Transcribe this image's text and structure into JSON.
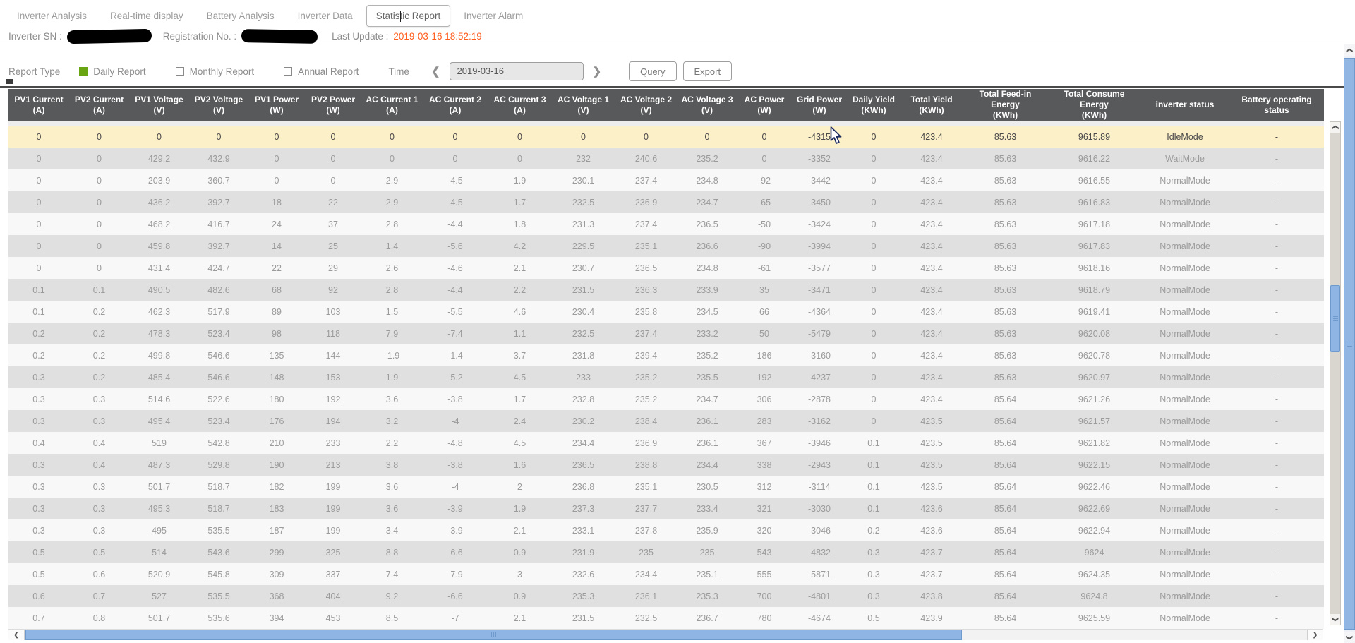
{
  "tabs": {
    "items": [
      {
        "label": "Inverter Analysis",
        "active": false
      },
      {
        "label": "Real-time display",
        "active": false
      },
      {
        "label": "Battery Analysis",
        "active": false
      },
      {
        "label": "Inverter Data",
        "active": false
      },
      {
        "label": "Statistic Report",
        "active": true
      },
      {
        "label": "Inverter Alarm",
        "active": false
      }
    ]
  },
  "info": {
    "inverter_sn_label": "Inverter SN :",
    "registration_label": "Registration No. :",
    "last_update_label": "Last Update :",
    "last_update_value": "2019-03-16 18:52:19",
    "last_update_color": "#ff5c1c"
  },
  "controls": {
    "report_type_label": "Report Type",
    "options": [
      {
        "label": "Daily Report",
        "checked": true
      },
      {
        "label": "Monthly Report",
        "checked": false
      },
      {
        "label": "Annual Report",
        "checked": false
      }
    ],
    "checkbox_green": "#69a412",
    "time_label": "Time",
    "date_value": "2019-03-16",
    "query_label": "Query",
    "export_label": "Export"
  },
  "icons": {
    "chevron_left": "❮",
    "chevron_right": "❯"
  },
  "table": {
    "header_bg": "#58595b",
    "highlight_color": "#fcf0c8",
    "row_light": "#f8f8f8",
    "row_dark": "#e0e0e0",
    "scrollbar_blue": "#8fb5e4",
    "highlight_row_index": 0,
    "columns": [
      {
        "name": "PV1 Current",
        "unit": "(A)"
      },
      {
        "name": "PV2 Current",
        "unit": "(A)"
      },
      {
        "name": "PV1 Voltage",
        "unit": "(V)"
      },
      {
        "name": "PV2 Voltage",
        "unit": "(V)"
      },
      {
        "name": "PV1 Power",
        "unit": "(W)"
      },
      {
        "name": "PV2 Power",
        "unit": "(W)"
      },
      {
        "name": "AC Current 1",
        "unit": "(A)"
      },
      {
        "name": "AC Current 2",
        "unit": "(A)"
      },
      {
        "name": "AC Current 3",
        "unit": "(A)"
      },
      {
        "name": "AC Voltage 1",
        "unit": "(V)"
      },
      {
        "name": "AC Voltage 2",
        "unit": "(V)"
      },
      {
        "name": "AC Voltage 3",
        "unit": "(V)"
      },
      {
        "name": "AC Power",
        "unit": "(W)"
      },
      {
        "name": "Grid Power",
        "unit": "(W)"
      },
      {
        "name": "Daily Yield",
        "unit": "(KWh)"
      },
      {
        "name": "Total Yield",
        "unit": "(KWh)"
      },
      {
        "name": "Total Feed-in Energy",
        "unit": "(KWh)"
      },
      {
        "name": "Total Consume Energy",
        "unit": "(KWh)"
      },
      {
        "name": "inverter status",
        "unit": ""
      },
      {
        "name": "Battery operating status",
        "unit": ""
      }
    ],
    "rows": [
      [
        "0",
        "0",
        "0",
        "0",
        "0",
        "0",
        "0",
        "0",
        "0",
        "0",
        "0",
        "0",
        "0",
        "-4315",
        "0",
        "423.4",
        "85.63",
        "9615.89",
        "IdleMode",
        "-"
      ],
      [
        "0",
        "0",
        "429.2",
        "432.9",
        "0",
        "0",
        "0",
        "0",
        "0",
        "232",
        "240.6",
        "235.2",
        "0",
        "-3352",
        "0",
        "423.4",
        "85.63",
        "9616.22",
        "WaitMode",
        "-"
      ],
      [
        "0",
        "0",
        "203.9",
        "360.7",
        "0",
        "0",
        "2.9",
        "-4.5",
        "1.9",
        "230.1",
        "237.4",
        "234.8",
        "-92",
        "-3442",
        "0",
        "423.4",
        "85.63",
        "9616.55",
        "NormalMode",
        "-"
      ],
      [
        "0",
        "0",
        "436.2",
        "392.7",
        "18",
        "22",
        "2.9",
        "-4.5",
        "1.7",
        "232.5",
        "236.9",
        "234.7",
        "-65",
        "-3450",
        "0",
        "423.4",
        "85.63",
        "9616.83",
        "NormalMode",
        "-"
      ],
      [
        "0",
        "0",
        "468.2",
        "416.7",
        "24",
        "37",
        "2.8",
        "-4.4",
        "1.8",
        "231.3",
        "237.4",
        "236.5",
        "-50",
        "-3424",
        "0",
        "423.4",
        "85.63",
        "9617.18",
        "NormalMode",
        "-"
      ],
      [
        "0",
        "0",
        "459.8",
        "392.7",
        "14",
        "25",
        "1.4",
        "-5.6",
        "4.2",
        "229.5",
        "235.1",
        "236.6",
        "-90",
        "-3994",
        "0",
        "423.4",
        "85.63",
        "9617.83",
        "NormalMode",
        "-"
      ],
      [
        "0",
        "0",
        "431.4",
        "424.7",
        "22",
        "29",
        "2.6",
        "-4.6",
        "2.1",
        "230.7",
        "236.5",
        "234.8",
        "-61",
        "-3577",
        "0",
        "423.4",
        "85.63",
        "9618.16",
        "NormalMode",
        "-"
      ],
      [
        "0.1",
        "0.1",
        "490.5",
        "482.6",
        "68",
        "92",
        "2.8",
        "-4.4",
        "2.2",
        "231.5",
        "236.3",
        "233.9",
        "35",
        "-3471",
        "0",
        "423.4",
        "85.63",
        "9618.79",
        "NormalMode",
        "-"
      ],
      [
        "0.1",
        "0.2",
        "462.3",
        "517.9",
        "89",
        "103",
        "1.5",
        "-5.5",
        "4.6",
        "230.4",
        "235.8",
        "234.5",
        "66",
        "-4364",
        "0",
        "423.4",
        "85.63",
        "9619.41",
        "NormalMode",
        "-"
      ],
      [
        "0.2",
        "0.2",
        "478.3",
        "523.4",
        "98",
        "118",
        "7.9",
        "-7.4",
        "1.1",
        "232.5",
        "237.4",
        "233.2",
        "50",
        "-5479",
        "0",
        "423.4",
        "85.63",
        "9620.08",
        "NormalMode",
        "-"
      ],
      [
        "0.2",
        "0.2",
        "499.8",
        "546.6",
        "135",
        "144",
        "-1.9",
        "-1.4",
        "3.7",
        "231.8",
        "239.4",
        "235.2",
        "186",
        "-3160",
        "0",
        "423.4",
        "85.63",
        "9620.78",
        "NormalMode",
        "-"
      ],
      [
        "0.3",
        "0.2",
        "485.4",
        "546.6",
        "148",
        "153",
        "1.9",
        "-5.2",
        "4.5",
        "233",
        "235.2",
        "235.5",
        "192",
        "-4237",
        "0",
        "423.4",
        "85.63",
        "9620.97",
        "NormalMode",
        "-"
      ],
      [
        "0.3",
        "0.3",
        "514.6",
        "522.6",
        "180",
        "192",
        "3.6",
        "-3.8",
        "1.7",
        "232.8",
        "235.2",
        "234.7",
        "306",
        "-2878",
        "0",
        "423.4",
        "85.64",
        "9621.26",
        "NormalMode",
        "-"
      ],
      [
        "0.3",
        "0.3",
        "495.4",
        "523.4",
        "176",
        "194",
        "3.2",
        "-4",
        "2.4",
        "230.2",
        "238.4",
        "236.1",
        "283",
        "-3162",
        "0",
        "423.5",
        "85.64",
        "9621.57",
        "NormalMode",
        "-"
      ],
      [
        "0.4",
        "0.4",
        "519",
        "542.8",
        "210",
        "233",
        "2.2",
        "-4.8",
        "4.5",
        "234.4",
        "236.9",
        "236.1",
        "367",
        "-3946",
        "0.1",
        "423.5",
        "85.64",
        "9621.82",
        "NormalMode",
        "-"
      ],
      [
        "0.3",
        "0.4",
        "487.3",
        "529.8",
        "190",
        "213",
        "3.8",
        "-3.8",
        "1.6",
        "236.5",
        "238.8",
        "234.4",
        "338",
        "-2943",
        "0.1",
        "423.5",
        "85.64",
        "9622.15",
        "NormalMode",
        "-"
      ],
      [
        "0.3",
        "0.3",
        "501.7",
        "518.7",
        "182",
        "199",
        "3.6",
        "-4",
        "2",
        "236.8",
        "235.1",
        "230.5",
        "312",
        "-3114",
        "0.1",
        "423.5",
        "85.64",
        "9622.46",
        "NormalMode",
        "-"
      ],
      [
        "0.3",
        "0.3",
        "495.3",
        "518.7",
        "183",
        "199",
        "3.6",
        "-3.9",
        "1.9",
        "237.3",
        "237.7",
        "233.4",
        "321",
        "-3030",
        "0.1",
        "423.6",
        "85.64",
        "9622.69",
        "NormalMode",
        "-"
      ],
      [
        "0.3",
        "0.3",
        "495",
        "535.5",
        "187",
        "199",
        "3.4",
        "-3.9",
        "2.1",
        "233.1",
        "237.8",
        "235.9",
        "320",
        "-3046",
        "0.2",
        "423.6",
        "85.64",
        "9622.94",
        "NormalMode",
        "-"
      ],
      [
        "0.5",
        "0.5",
        "514",
        "543.6",
        "299",
        "325",
        "8.8",
        "-6.6",
        "0.9",
        "231.9",
        "235",
        "235",
        "543",
        "-4832",
        "0.3",
        "423.7",
        "85.64",
        "9624",
        "NormalMode",
        "-"
      ],
      [
        "0.5",
        "0.6",
        "520.9",
        "545.8",
        "309",
        "337",
        "7.4",
        "-7.9",
        "3",
        "232.6",
        "234.4",
        "235.1",
        "555",
        "-5871",
        "0.3",
        "423.7",
        "85.64",
        "9624.35",
        "NormalMode",
        "-"
      ],
      [
        "0.6",
        "0.7",
        "527",
        "535.5",
        "368",
        "404",
        "9.2",
        "-6.6",
        "0.9",
        "235.3",
        "236.1",
        "235.3",
        "700",
        "-4801",
        "0.3",
        "423.8",
        "85.64",
        "9624.8",
        "NormalMode",
        "-"
      ],
      [
        "0.7",
        "0.8",
        "501.7",
        "535.6",
        "394",
        "453",
        "8.5",
        "-7",
        "2.1",
        "231.5",
        "232.5",
        "236.7",
        "780",
        "-4674",
        "0.5",
        "423.9",
        "85.64",
        "9625.59",
        "NormalMode",
        "-"
      ]
    ]
  }
}
